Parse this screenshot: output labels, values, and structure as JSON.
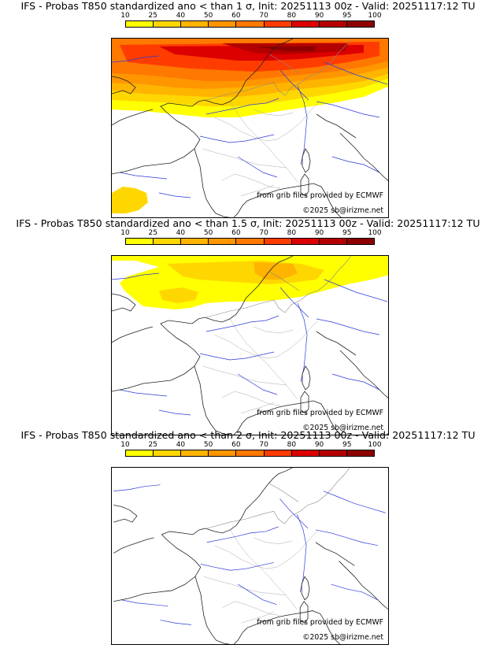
{
  "colorbar": {
    "ticks": [
      "10",
      "25",
      "40",
      "50",
      "60",
      "70",
      "80",
      "90",
      "95",
      "100"
    ],
    "colors": [
      "#ffff00",
      "#ffd700",
      "#ffb400",
      "#ff9600",
      "#ff7800",
      "#ff3c00",
      "#dc0000",
      "#b40000",
      "#8c0000"
    ]
  },
  "credits": {
    "source": "from grib files provided by ECMWF",
    "copyright": "©2025 sb@irizme.net"
  },
  "panels": [
    {
      "title": "IFS - Probas T850  standardized ano < than 1 σ, Init: 20251113 00z - Valid: 20251117:12 TU"
    },
    {
      "title": "IFS - Probas T850  standardized ano < than 1.5 σ, Init: 20251113 00z - Valid: 20251117:12 TU"
    },
    {
      "title": "IFS - Probas T850  standardized ano < than 2 σ, Init: 20251113 00z - Valid: 20251117:12 TU"
    }
  ]
}
